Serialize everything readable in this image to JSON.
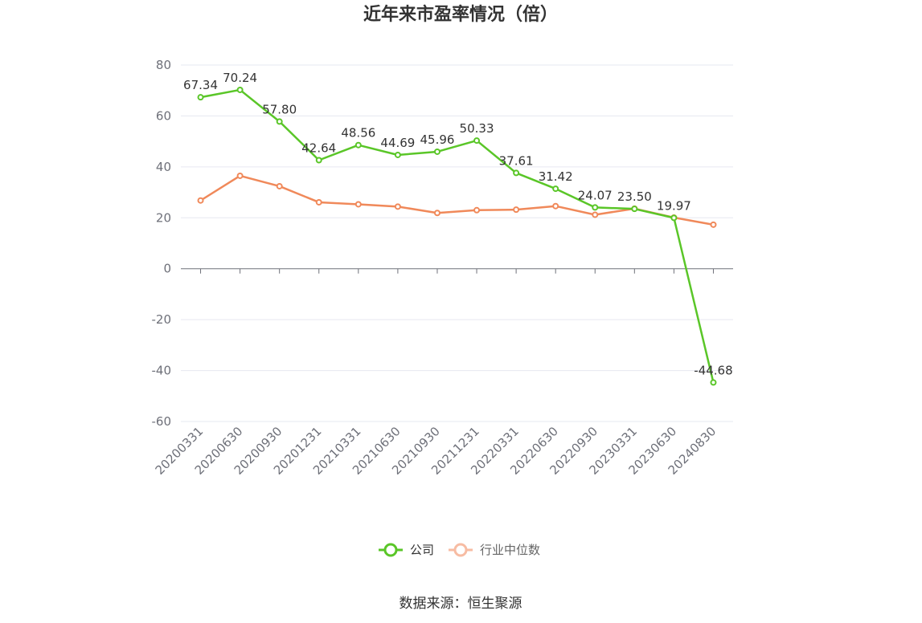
{
  "chart_data": {
    "type": "line",
    "title": "近年来市盈率情况（倍）",
    "categories": [
      "20200331",
      "20200630",
      "20200930",
      "20201231",
      "20210331",
      "20210630",
      "20210930",
      "20211231",
      "20220331",
      "20220630",
      "20220930",
      "20230331",
      "20230630",
      "20240830"
    ],
    "series": [
      {
        "name": "公司",
        "color": "#5ac628",
        "values": [
          67.34,
          70.24,
          57.8,
          42.64,
          48.56,
          44.69,
          45.96,
          50.33,
          37.61,
          31.42,
          24.07,
          23.5,
          19.97,
          -44.68
        ],
        "labels": [
          "67.34",
          "70.24",
          "57.80",
          "42.64",
          "48.56",
          "44.69",
          "45.96",
          "50.33",
          "37.61",
          "31.42",
          "24.07",
          "23.50",
          "19.97",
          "-44.68"
        ]
      },
      {
        "name": "行业中位数",
        "color": "#f0895a",
        "values": [
          26.8,
          36.5,
          32.4,
          26.1,
          25.3,
          24.4,
          21.9,
          23.0,
          23.2,
          24.6,
          21.2,
          23.6,
          20.1,
          17.3
        ]
      }
    ],
    "yticks": [
      "80",
      "60",
      "40",
      "20",
      "0",
      "-20",
      "-40",
      "-60"
    ],
    "ylim": [
      -60,
      80
    ],
    "grid": true,
    "legend_position": "bottom",
    "source": "数据来源：恒生聚源"
  }
}
